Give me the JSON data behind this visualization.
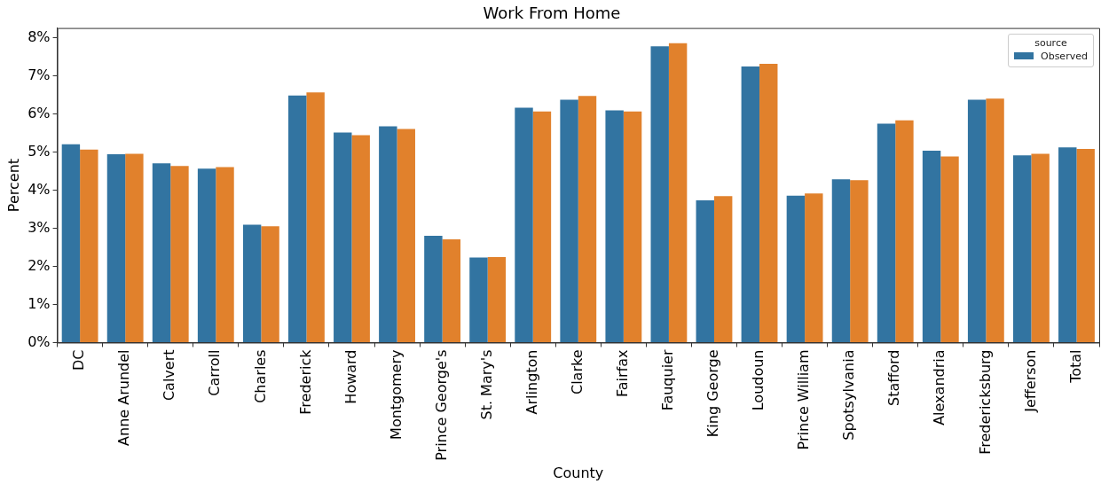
{
  "chart_data": {
    "type": "bar",
    "title": "Work From Home",
    "xlabel": "County",
    "ylabel": "Percent",
    "legend_title": "source",
    "categories": [
      "DC",
      "Anne Arundel",
      "Calvert",
      "Carroll",
      "Charles",
      "Frederick",
      "Howard",
      "Montgomery",
      "Prince George's",
      "St. Mary's",
      "Arlington",
      "Clarke",
      "Fairfax",
      "Fauquier",
      "King George",
      "Loudoun",
      "Prince William",
      "Spotsylvania",
      "Stafford",
      "Alexandria",
      "Fredericksburg",
      "Jefferson",
      "Total"
    ],
    "series": [
      {
        "name": "Observed",
        "color": "#3274a1",
        "values": [
          5.2,
          4.94,
          4.7,
          4.56,
          3.09,
          6.48,
          5.51,
          5.67,
          2.8,
          2.23,
          6.16,
          6.37,
          6.09,
          7.77,
          3.73,
          7.24,
          3.85,
          4.28,
          5.74,
          5.03,
          6.37,
          4.91,
          5.12
        ]
      },
      {
        "color": "#e1812c",
        "values": [
          5.06,
          4.95,
          4.63,
          4.6,
          3.05,
          6.56,
          5.44,
          5.6,
          2.71,
          2.24,
          6.06,
          6.47,
          6.06,
          7.85,
          3.84,
          7.31,
          3.91,
          4.26,
          5.83,
          4.88,
          6.4,
          4.95,
          5.08
        ]
      }
    ],
    "ylim": [
      0,
      8.25
    ],
    "yticks": [
      {
        "value": 0,
        "label": "0%"
      },
      {
        "value": 1,
        "label": "1%"
      },
      {
        "value": 2,
        "label": "2%"
      },
      {
        "value": 3,
        "label": "3%"
      },
      {
        "value": 4,
        "label": "4%"
      },
      {
        "value": 5,
        "label": "5%"
      },
      {
        "value": 6,
        "label": "6%"
      },
      {
        "value": 7,
        "label": "7%"
      },
      {
        "value": 8,
        "label": "8%"
      }
    ],
    "grid": false,
    "legend": "top right"
  }
}
